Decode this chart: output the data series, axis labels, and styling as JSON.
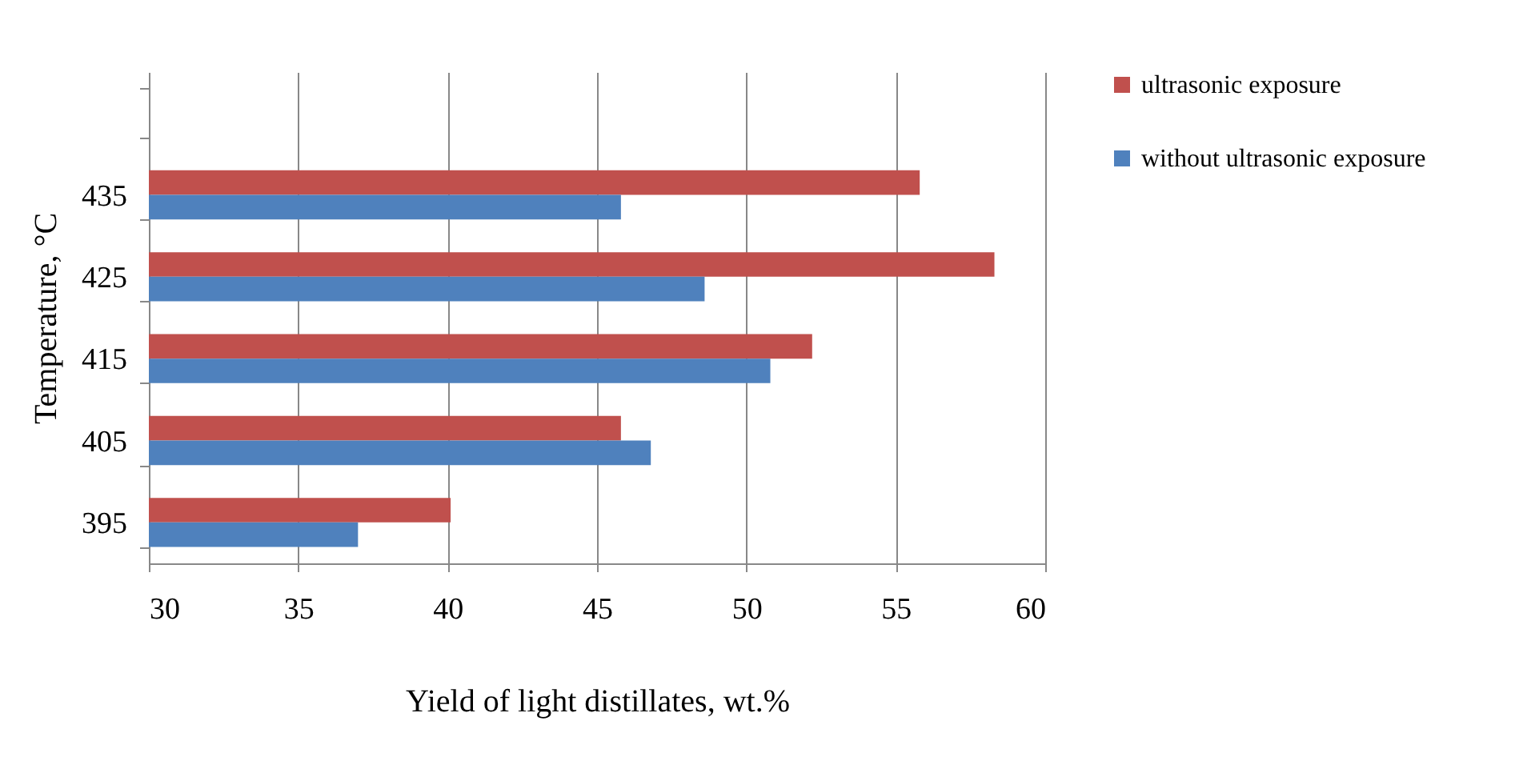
{
  "chart_data": {
    "type": "bar",
    "orientation": "horizontal",
    "xlabel": "Yield of light distillates, wt.%",
    "ylabel": "Temperature, °C",
    "categories": [
      null,
      "435",
      "425",
      "415",
      "405",
      "395"
    ],
    "series": [
      {
        "name": "ultrasonic exposure",
        "color": "#c0504d",
        "values": [
          null,
          55.8,
          58.3,
          52.2,
          45.8,
          40.1
        ]
      },
      {
        "name": "without ultrasonic exposure",
        "color": "#4f81bd",
        "values": [
          null,
          45.8,
          48.6,
          50.8,
          46.8,
          37.0
        ]
      }
    ],
    "xlim": [
      30,
      60
    ],
    "xticks": [
      30,
      35,
      40,
      45,
      50,
      55,
      60
    ],
    "grid": "x",
    "legend": "right"
  }
}
